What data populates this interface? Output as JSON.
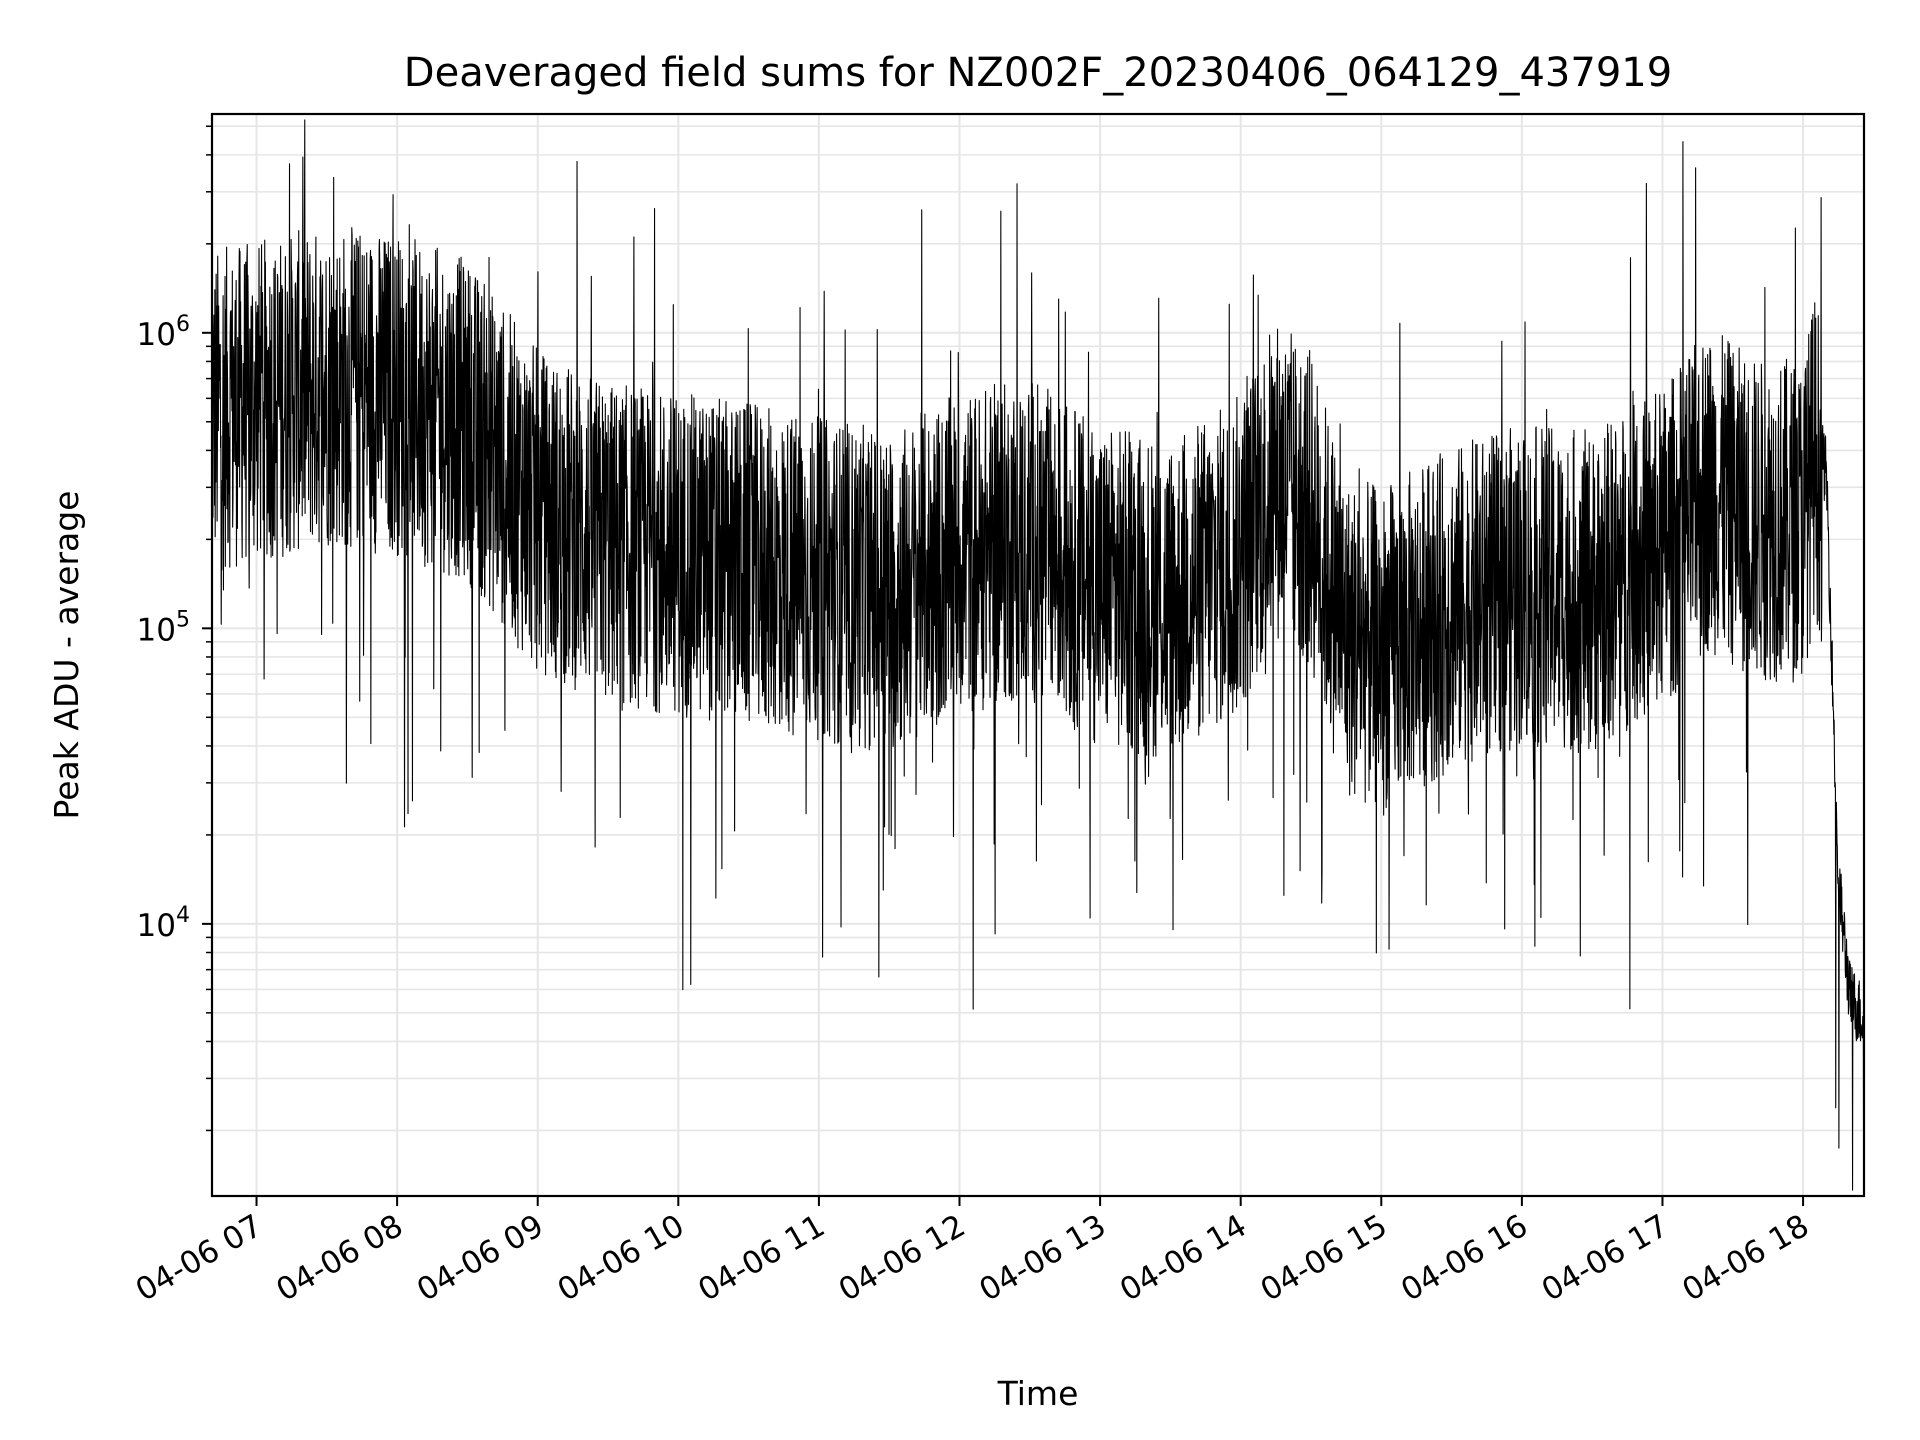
{
  "chart_data": {
    "type": "line",
    "title": "Deaveraged field sums for NZ002F_20230406_064129_437919",
    "xlabel": "Time",
    "ylabel": "Peak ADU - average",
    "yscale": "log",
    "xlim": [
      "2023-04-06 06:41",
      "2023-04-06 18:26"
    ],
    "ylim": [
      1200,
      5500000
    ],
    "x_ticks": [
      "04-06 07",
      "04-06 08",
      "04-06 09",
      "04-06 10",
      "04-06 11",
      "04-06 12",
      "04-06 13",
      "04-06 14",
      "04-06 15",
      "04-06 16",
      "04-06 17",
      "04-06 18"
    ],
    "y_ticks": [
      {
        "base": "10",
        "exp": "4",
        "value": 10000
      },
      {
        "base": "10",
        "exp": "5",
        "value": 100000
      },
      {
        "base": "10",
        "exp": "6",
        "value": 1000000
      }
    ],
    "grid": true,
    "line_color": "#000000",
    "grid_color": "#e6e6e6",
    "series": [
      {
        "x": [
          "06:41",
          "07:00",
          "07:30",
          "08:00",
          "08:30",
          "09:00",
          "09:30",
          "10:00",
          "10:30",
          "11:00",
          "11:30",
          "12:00",
          "12:30",
          "13:00",
          "13:30",
          "14:00",
          "14:15",
          "14:30",
          "14:45",
          "15:00",
          "15:30",
          "16:00",
          "16:30",
          "17:00",
          "17:20",
          "17:40",
          "18:00",
          "18:05",
          "18:10",
          "18:15",
          "18:20",
          "18:26"
        ],
        "y": [
          700000,
          750000,
          850000,
          800000,
          650000,
          320000,
          250000,
          230000,
          210000,
          190000,
          170000,
          230000,
          260000,
          180000,
          160000,
          230000,
          420000,
          320000,
          120000,
          110000,
          150000,
          180000,
          170000,
          240000,
          380000,
          300000,
          300000,
          500000,
          350000,
          15000,
          6000,
          5000
        ]
      }
    ],
    "notes": "Dense noisy time series; values approximate the local median level with large vertical spikes up to ~4e6 and dips down to ~1e4."
  }
}
